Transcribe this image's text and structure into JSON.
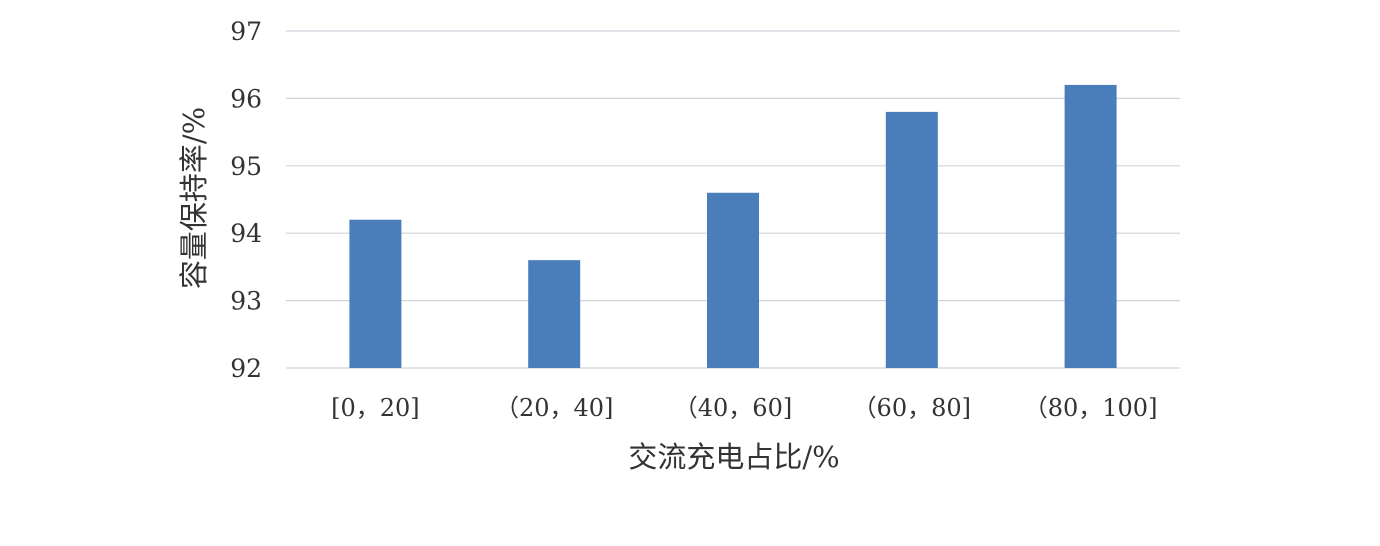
{
  "chart_data": {
    "type": "bar",
    "title": "",
    "xlabel": "交流充电占比/%",
    "ylabel": "容量保持率/%",
    "categories": [
      "[0，20]",
      "（20，40]",
      "（40，60]",
      "（60，80]",
      "（80，100]"
    ],
    "values": [
      94.2,
      93.6,
      94.6,
      95.8,
      96.2
    ],
    "ylim": [
      92,
      97
    ],
    "yticks": [
      92,
      93,
      94,
      95,
      96,
      97
    ],
    "grid": true,
    "legend": "none",
    "colors": {
      "bar": "#4a7ebb",
      "grid": "#d0d4dc",
      "text": "#333333"
    }
  }
}
